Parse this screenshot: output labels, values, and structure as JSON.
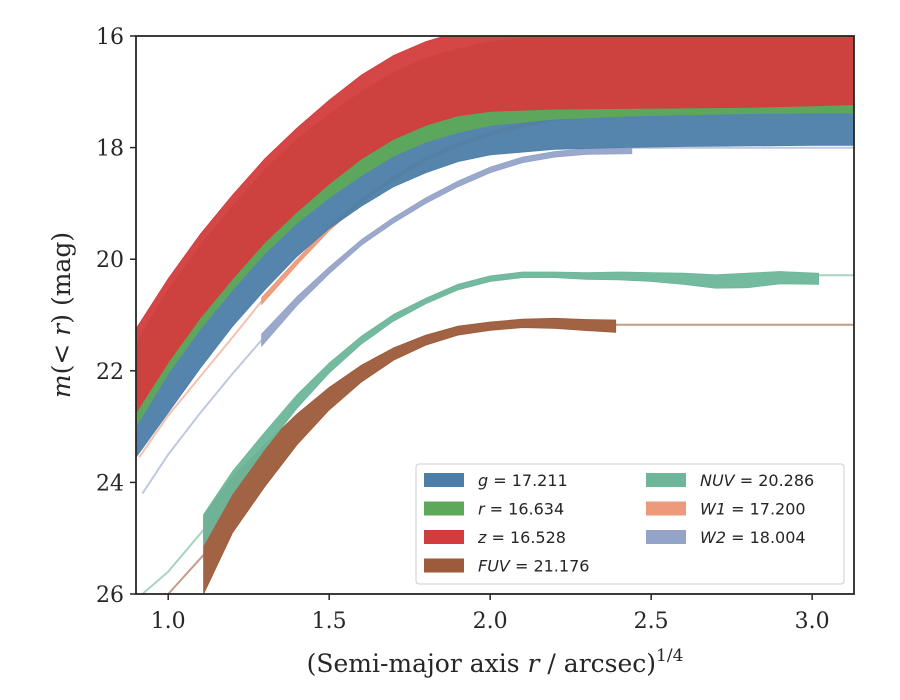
{
  "chart_data": {
    "type": "line",
    "xlabel": "(Semi-major axis r / arcsec)",
    "xlabel_prefix": "(Semi-major axis ",
    "xlabel_var": "r",
    "xlabel_suffix": " / arcsec)",
    "xlabel_exp": "1/4",
    "ylabel": "m(< r) (mag)",
    "xlim": [
      0.9,
      3.13
    ],
    "ylim": [
      26,
      16
    ],
    "y_inverted": true,
    "xticks": [
      "1.0",
      "1.5",
      "2.0",
      "2.5",
      "3.0"
    ],
    "xtick_values": [
      1.0,
      1.5,
      2.0,
      2.5,
      3.0
    ],
    "yticks": [
      "16",
      "18",
      "20",
      "22",
      "24",
      "26"
    ],
    "ytick_values": [
      16,
      18,
      20,
      22,
      24,
      26
    ],
    "legend_position": "lower-right",
    "series": [
      {
        "name": "g",
        "legend_label": "g = 17.211",
        "legend_var": "g",
        "legend_value": " = 17.211",
        "color": "#4c7ea8",
        "x": [
          0.9,
          1.0,
          1.1,
          1.2,
          1.3,
          1.4,
          1.5,
          1.6,
          1.7,
          1.8,
          1.9,
          2.0,
          2.2,
          2.4,
          2.6,
          2.8,
          3.0,
          3.13
        ],
        "y": [
          22.8,
          22.0,
          21.2,
          20.45,
          19.8,
          19.2,
          18.7,
          18.3,
          17.95,
          17.7,
          17.5,
          17.38,
          17.28,
          17.25,
          17.23,
          17.22,
          17.21,
          17.21
        ],
        "width": [
          1.5,
          1.5,
          1.5,
          1.5,
          1.5,
          1.5,
          1.5,
          1.5,
          1.5,
          1.5,
          1.5,
          1.5,
          1.5,
          1.5,
          1.5,
          1.5,
          1.5,
          1.5
        ]
      },
      {
        "name": "r",
        "legend_label": "r = 16.634",
        "legend_var": "r",
        "legend_value": " = 16.634",
        "color": "#5ea85a",
        "x": [
          0.9,
          1.0,
          1.1,
          1.2,
          1.3,
          1.4,
          1.5,
          1.6,
          1.7,
          1.8,
          1.9,
          2.0,
          2.2,
          2.4,
          2.6,
          2.8,
          3.0,
          3.13
        ],
        "y": [
          22.25,
          21.3,
          20.5,
          19.8,
          19.15,
          18.6,
          18.15,
          17.75,
          17.4,
          17.15,
          16.98,
          16.85,
          16.74,
          16.69,
          16.66,
          16.64,
          16.63,
          16.63
        ],
        "width": [
          1.5,
          1.5,
          1.5,
          1.5,
          1.5,
          1.5,
          1.5,
          1.5,
          1.5,
          1.5,
          1.5,
          1.5,
          1.5,
          1.5,
          1.5,
          1.5,
          1.5,
          1.5
        ]
      },
      {
        "name": "z",
        "legend_label": "z = 16.528",
        "legend_var": "z",
        "legend_value": " = 16.528",
        "color": "#d33c3c",
        "x": [
          0.9,
          1.0,
          1.1,
          1.2,
          1.3,
          1.4,
          1.5,
          1.6,
          1.7,
          1.8,
          1.9,
          2.0,
          2.2,
          2.4,
          2.6,
          2.8,
          3.0,
          3.13
        ],
        "y": [
          22.0,
          21.1,
          20.3,
          19.6,
          18.95,
          18.4,
          17.9,
          17.45,
          17.1,
          16.85,
          16.68,
          16.6,
          16.56,
          16.55,
          16.54,
          16.53,
          16.5,
          16.48
        ],
        "width": [
          1.5,
          1.5,
          1.5,
          1.5,
          1.5,
          1.5,
          1.5,
          1.5,
          1.5,
          1.5,
          1.5,
          1.5,
          1.5,
          1.5,
          1.5,
          1.5,
          1.5,
          1.5
        ]
      },
      {
        "name": "FUV",
        "legend_label": "FUV = 21.176",
        "legend_var": "FUV",
        "legend_value": " = 21.176",
        "color": "#9c5b3a",
        "x": [
          1.11,
          1.2,
          1.3,
          1.4,
          1.5,
          1.6,
          1.7,
          1.8,
          1.9,
          2.0,
          2.1,
          2.2,
          2.3,
          2.39
        ],
        "y": [
          25.3,
          24.4,
          23.7,
          23.05,
          22.5,
          22.05,
          21.7,
          21.45,
          21.28,
          21.2,
          21.15,
          21.15,
          21.18,
          21.2
        ],
        "width": [
          1.4,
          1.0,
          0.75,
          0.55,
          0.4,
          0.3,
          0.22,
          0.18,
          0.16,
          0.15,
          0.15,
          0.18,
          0.2,
          0.22
        ]
      },
      {
        "name": "NUV",
        "legend_label": "NUV = 20.286",
        "legend_var": "NUV",
        "legend_value": " = 20.286",
        "color": "#6db69a",
        "x": [
          1.11,
          1.2,
          1.3,
          1.4,
          1.5,
          1.6,
          1.7,
          1.8,
          1.9,
          2.0,
          2.1,
          2.2,
          2.3,
          2.4,
          2.5,
          2.6,
          2.7,
          2.8,
          2.9,
          3.02
        ],
        "y": [
          24.85,
          24.0,
          23.25,
          22.55,
          21.95,
          21.45,
          21.05,
          20.75,
          20.5,
          20.35,
          20.28,
          20.28,
          20.3,
          20.3,
          20.32,
          20.35,
          20.4,
          20.38,
          20.33,
          20.35
        ],
        "width": [
          0.55,
          0.4,
          0.3,
          0.24,
          0.18,
          0.14,
          0.12,
          0.1,
          0.1,
          0.1,
          0.1,
          0.1,
          0.12,
          0.14,
          0.16,
          0.2,
          0.24,
          0.26,
          0.22,
          0.2
        ]
      },
      {
        "name": "W1",
        "legend_label": "W1 = 17.200",
        "legend_var": "W1",
        "legend_value": " = 17.200",
        "color": "#ec9a7a",
        "x": [
          1.29,
          1.4,
          1.5,
          1.6,
          1.7,
          1.8,
          1.9,
          2.0,
          2.1,
          2.2,
          2.3,
          2.4,
          2.5,
          2.6,
          2.7,
          2.79
        ],
        "y": [
          20.75,
          20.05,
          19.45,
          18.95,
          18.55,
          18.2,
          17.95,
          17.75,
          17.6,
          17.48,
          17.4,
          17.35,
          17.3,
          17.25,
          17.2,
          17.15
        ],
        "width": [
          0.12,
          0.1,
          0.08,
          0.07,
          0.07,
          0.07,
          0.07,
          0.07,
          0.07,
          0.07,
          0.07,
          0.07,
          0.07,
          0.07,
          0.07,
          0.07
        ]
      },
      {
        "name": "W2",
        "legend_label": "W2 = 18.004",
        "legend_var": "W2",
        "legend_value": " = 18.004",
        "color": "#94a3c8",
        "x": [
          1.29,
          1.4,
          1.5,
          1.6,
          1.7,
          1.8,
          1.9,
          2.0,
          2.1,
          2.2,
          2.3,
          2.44
        ],
        "y": [
          21.45,
          20.75,
          20.2,
          19.7,
          19.3,
          18.95,
          18.65,
          18.4,
          18.22,
          18.12,
          18.07,
          18.06
        ],
        "width": [
          0.22,
          0.16,
          0.12,
          0.1,
          0.1,
          0.1,
          0.1,
          0.1,
          0.1,
          0.1,
          0.1,
          0.1
        ]
      }
    ],
    "extrapolations": [
      {
        "name": "FUV-inner",
        "color": "#9c5b3a",
        "x": [
          1.0,
          1.11
        ],
        "y": [
          26.0,
          25.3
        ]
      },
      {
        "name": "FUV-outer",
        "color": "#9c5b3a",
        "x": [
          2.39,
          3.13
        ],
        "y": [
          21.176,
          21.176
        ]
      },
      {
        "name": "NUV-inner",
        "color": "#6db69a",
        "x": [
          0.92,
          1.0,
          1.11
        ],
        "y": [
          26.0,
          25.6,
          24.85
        ]
      },
      {
        "name": "NUV-outer",
        "color": "#6db69a",
        "x": [
          3.02,
          3.13
        ],
        "y": [
          20.286,
          20.286
        ]
      },
      {
        "name": "W1-inner",
        "color": "#ec9a7a",
        "x": [
          0.91,
          1.0,
          1.1,
          1.2,
          1.29
        ],
        "y": [
          23.55,
          22.8,
          22.1,
          21.4,
          20.75
        ]
      },
      {
        "name": "W1-outer",
        "color": "#ec9a7a",
        "x": [
          2.79,
          3.13
        ],
        "y": [
          17.2,
          17.2
        ]
      },
      {
        "name": "W2-inner",
        "color": "#94a3c8",
        "x": [
          0.92,
          1.0,
          1.1,
          1.2,
          1.29
        ],
        "y": [
          24.2,
          23.5,
          22.75,
          22.05,
          21.45
        ]
      },
      {
        "name": "W2-outer",
        "color": "#94a3c8",
        "x": [
          2.44,
          3.13
        ],
        "y": [
          18.004,
          18.004
        ]
      }
    ],
    "legend_columns": [
      [
        "g",
        "r",
        "z",
        "FUV"
      ],
      [
        "NUV",
        "W1",
        "W2"
      ]
    ]
  }
}
